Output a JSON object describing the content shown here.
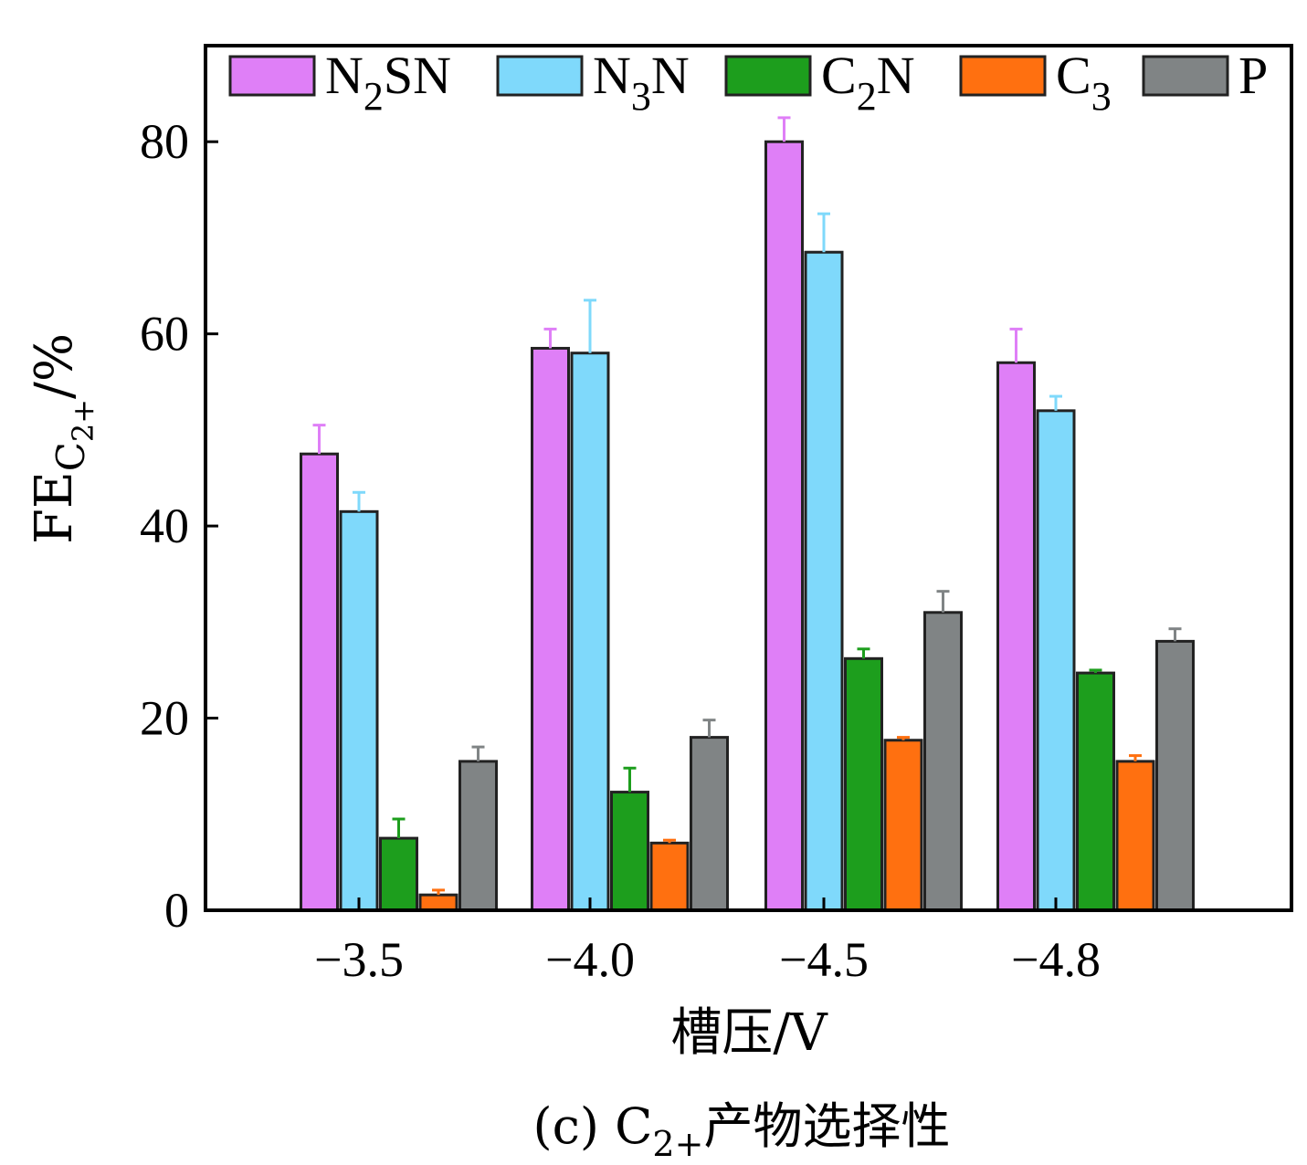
{
  "chart_data": {
    "type": "bar",
    "categories": [
      "−3.5",
      "−4.0",
      "−4.5",
      "−4.8"
    ],
    "series": [
      {
        "name": "N2SN",
        "label_main": "N",
        "label_sub": "2",
        "label_tail": "SN",
        "color": "#df7ff7",
        "err_color": "#df7ff7",
        "values": [
          47.5,
          58.5,
          80.0,
          57.0
        ],
        "errors": [
          3.0,
          2.0,
          2.5,
          3.5
        ]
      },
      {
        "name": "N3N",
        "label_main": "N",
        "label_sub": "3",
        "label_tail": "N",
        "color": "#7fd9fb",
        "err_color": "#7fd9fb",
        "values": [
          41.5,
          58.0,
          68.5,
          52.0
        ],
        "errors": [
          2.0,
          5.5,
          4.0,
          1.5
        ]
      },
      {
        "name": "C2N",
        "label_main": "C",
        "label_sub": "2",
        "label_tail": "N",
        "color": "#1d9e1d",
        "err_color": "#1d9e1d",
        "values": [
          7.5,
          12.3,
          26.2,
          24.7
        ],
        "errors": [
          2.0,
          2.5,
          1.0,
          0.3
        ]
      },
      {
        "name": "C3",
        "label_main": "C",
        "label_sub": "3",
        "label_tail": "",
        "color": "#ff7010",
        "err_color": "#ff7010",
        "values": [
          1.6,
          7.0,
          17.7,
          15.5
        ],
        "errors": [
          0.5,
          0.3,
          0.3,
          0.6
        ]
      },
      {
        "name": "P",
        "label_main": "P",
        "label_sub": "",
        "label_tail": "",
        "color": "#808485",
        "err_color": "#808485",
        "values": [
          15.5,
          18.0,
          31.0,
          28.0
        ],
        "errors": [
          1.5,
          1.8,
          2.2,
          1.3
        ]
      }
    ],
    "ylim": [
      0,
      90
    ],
    "yticks": [
      0,
      20,
      40,
      60,
      80
    ],
    "ylabel": {
      "main": "FE",
      "sub_main": "C",
      "sub_sub": "2+",
      "tail": "/%"
    },
    "xlabel": "槽压/V",
    "caption": {
      "prefix": "(c) C",
      "sub": "2+",
      "suffix": "产物选择性"
    },
    "grid": false,
    "legend_position": "top"
  }
}
